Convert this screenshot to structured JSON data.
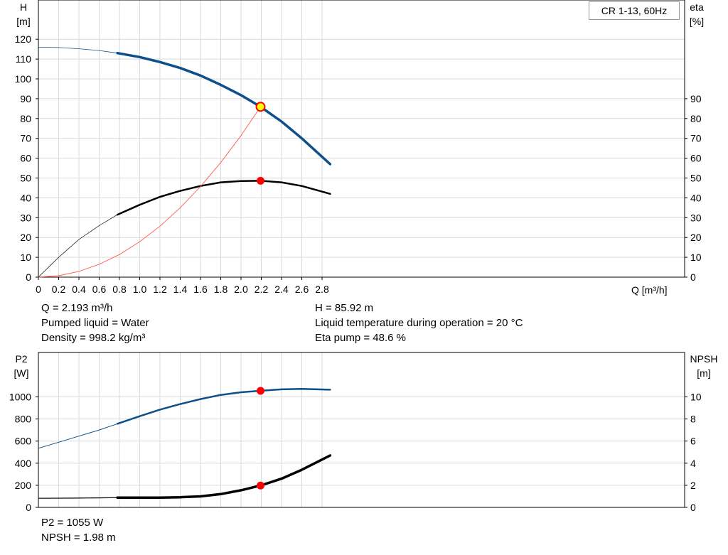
{
  "colors": {
    "grid": "#d9d9d9",
    "axis": "#000000",
    "head_curve": "#0d4f8b",
    "eta_curve": "#000000",
    "system_curve": "#ff5a4a",
    "power_curve": "#0d4f8b",
    "npsh_curve": "#000000",
    "duty_point": "#ff0000",
    "duty_point_highlight": "#ffff00"
  },
  "upper_info": {
    "left": [
      "Q = 2.193 m³/h",
      "Pumped liquid = Water",
      "Density = 998.2 kg/m³"
    ],
    "right": [
      "H = 85.92 m",
      "Liquid temperature during operation = 20 °C",
      "Eta pump = 48.6 %"
    ]
  },
  "lower_info": [
    "P2 = 1055 W",
    "NPSH = 1.98 m"
  ],
  "chart_data": [
    {
      "type": "line",
      "title": "CR 1-13, 60Hz",
      "xlabel": "Q [m³/h]",
      "ylabel": "H",
      "ylabel_unit": "[m]",
      "y2label": "eta",
      "y2label_unit": "[%]",
      "xlim": [
        0,
        2.8
      ],
      "ylim": [
        0,
        120
      ],
      "y2lim": [
        0,
        90
      ],
      "x_ticks": [
        "0",
        "0.2",
        "0.4",
        "0.6",
        "0.8",
        "1.0",
        "1.2",
        "1.4",
        "1.6",
        "1.8",
        "2.0",
        "2.2",
        "2.4",
        "2.6",
        "2.8"
      ],
      "y_ticks": [
        "0",
        "10",
        "20",
        "30",
        "40",
        "50",
        "60",
        "70",
        "80",
        "90",
        "100",
        "110",
        "120"
      ],
      "y2_ticks": [
        "0",
        "10",
        "20",
        "30",
        "40",
        "50",
        "60",
        "70",
        "80",
        "90"
      ],
      "grid": true,
      "series": [
        {
          "key": "head",
          "axis": "left",
          "values": [
            [
              0,
              116
            ],
            [
              0.2,
              115.8
            ],
            [
              0.4,
              115.2
            ],
            [
              0.6,
              114.3
            ],
            [
              0.78,
              113
            ],
            [
              1.0,
              111
            ],
            [
              1.2,
              108.5
            ],
            [
              1.4,
              105.5
            ],
            [
              1.6,
              101.7
            ],
            [
              1.8,
              97
            ],
            [
              2.0,
              91.8
            ],
            [
              2.193,
              85.92
            ],
            [
              2.4,
              78.5
            ],
            [
              2.6,
              70
            ],
            [
              2.88,
              57
            ]
          ],
          "thin_until": 0.78
        },
        {
          "key": "eta",
          "axis": "right",
          "values": [
            [
              0,
              0
            ],
            [
              0.2,
              10
            ],
            [
              0.4,
              19
            ],
            [
              0.6,
              26
            ],
            [
              0.78,
              31.5
            ],
            [
              1.0,
              36.5
            ],
            [
              1.2,
              40.5
            ],
            [
              1.4,
              43.5
            ],
            [
              1.6,
              46
            ],
            [
              1.8,
              47.8
            ],
            [
              2.0,
              48.5
            ],
            [
              2.193,
              48.6
            ],
            [
              2.4,
              47.8
            ],
            [
              2.6,
              46
            ],
            [
              2.88,
              42
            ]
          ],
          "thin_until": 0.78
        },
        {
          "key": "system",
          "axis": "left",
          "values": [
            [
              0,
              0
            ],
            [
              0.2,
              0.7
            ],
            [
              0.4,
              2.9
            ],
            [
              0.6,
              6.5
            ],
            [
              0.8,
              11.4
            ],
            [
              1.0,
              17.9
            ],
            [
              1.2,
              25.7
            ],
            [
              1.4,
              35
            ],
            [
              1.6,
              45.7
            ],
            [
              1.8,
              57.8
            ],
            [
              2.0,
              71.4
            ],
            [
              2.193,
              85.92
            ]
          ],
          "thin_until": 99
        }
      ],
      "duty_points": [
        {
          "key": "head",
          "x": 2.193,
          "y": 85.92
        },
        {
          "key": "eta",
          "x": 2.193,
          "y": 48.6
        }
      ]
    },
    {
      "type": "line",
      "ylabel": "P2",
      "ylabel_unit": "[W]",
      "y2label": "NPSH",
      "y2label_unit": "[m]",
      "xlim": [
        0,
        2.8
      ],
      "ylim": [
        0,
        1000
      ],
      "y2lim": [
        0,
        10
      ],
      "y_ticks": [
        "0",
        "200",
        "400",
        "600",
        "800",
        "1000"
      ],
      "y2_ticks": [
        "0",
        "2",
        "4",
        "6",
        "8",
        "10"
      ],
      "grid": true,
      "series": [
        {
          "key": "power",
          "axis": "left",
          "values": [
            [
              0,
              535
            ],
            [
              0.2,
              590
            ],
            [
              0.4,
              645
            ],
            [
              0.6,
              700
            ],
            [
              0.78,
              757
            ],
            [
              1.0,
              825
            ],
            [
              1.2,
              885
            ],
            [
              1.4,
              935
            ],
            [
              1.6,
              980
            ],
            [
              1.8,
              1018
            ],
            [
              2.0,
              1042
            ],
            [
              2.193,
              1055
            ],
            [
              2.4,
              1068
            ],
            [
              2.6,
              1072
            ],
            [
              2.88,
              1065
            ]
          ],
          "thin_until": 0.78
        },
        {
          "key": "npsh",
          "axis": "right",
          "values": [
            [
              0,
              0.82
            ],
            [
              0.4,
              0.84
            ],
            [
              0.78,
              0.88
            ],
            [
              1.0,
              0.88
            ],
            [
              1.2,
              0.89
            ],
            [
              1.4,
              0.92
            ],
            [
              1.6,
              1.0
            ],
            [
              1.8,
              1.2
            ],
            [
              2.0,
              1.55
            ],
            [
              2.193,
              1.98
            ],
            [
              2.4,
              2.6
            ],
            [
              2.6,
              3.4
            ],
            [
              2.88,
              4.7
            ]
          ],
          "thin_until": 0.78
        }
      ],
      "duty_points": [
        {
          "key": "power",
          "x": 2.193,
          "y": 1055
        },
        {
          "key": "npsh",
          "x": 2.193,
          "y": 1.98
        }
      ]
    }
  ]
}
